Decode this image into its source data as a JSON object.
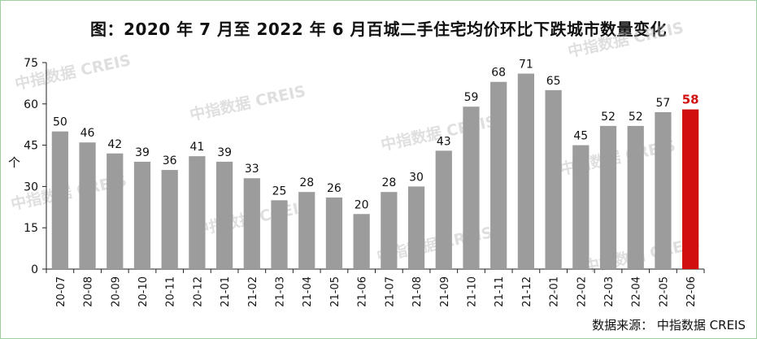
{
  "chart_data": {
    "type": "bar",
    "title": "图：2020 年 7 月至 2022 年 6 月百城二手住宅均价环比下跌城市数量变化",
    "ylabel": "个",
    "xlabel": "",
    "ylim": [
      0,
      75
    ],
    "yticks": [
      0,
      15,
      30,
      45,
      60,
      75
    ],
    "grid": false,
    "legend": "none",
    "categories": [
      "20-07",
      "20-08",
      "20-09",
      "20-10",
      "20-11",
      "20-12",
      "21-01",
      "21-02",
      "21-03",
      "21-04",
      "21-05",
      "21-06",
      "21-07",
      "21-08",
      "21-09",
      "21-10",
      "21-11",
      "21-12",
      "22-01",
      "22-02",
      "22-03",
      "22-04",
      "22-05",
      "22-06"
    ],
    "values": [
      50,
      46,
      42,
      39,
      36,
      41,
      39,
      33,
      25,
      28,
      26,
      20,
      28,
      30,
      43,
      59,
      68,
      71,
      65,
      45,
      52,
      52,
      57,
      58
    ],
    "highlight_index": 23,
    "colors": {
      "bar": "#9c9c9c",
      "highlight": "#d10f0f",
      "highlight_label": "#d10f0f",
      "label": "#111111"
    }
  },
  "source": "数据来源：  中指数据 CREIS",
  "watermark": "中指数据 CREIS"
}
